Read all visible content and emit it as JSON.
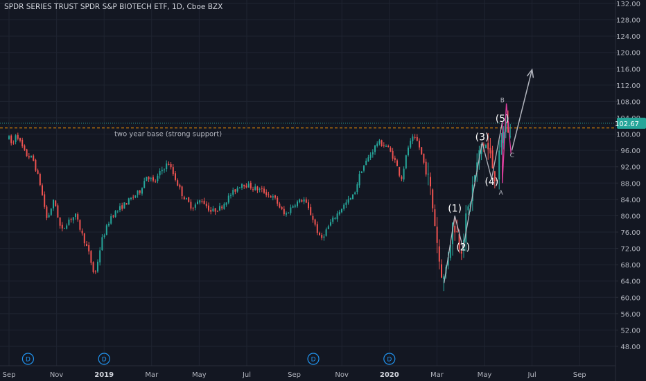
{
  "header": {
    "title": "SPDR SERIES TRUST SPDR S&P BIOTECH ETF, 1D, Cboe BZX"
  },
  "colors": {
    "background": "#131722",
    "grid": "#1f2431",
    "up": "#26a69a",
    "down": "#ef5350",
    "wave_line": "#b2b5be",
    "orange_line": "#ff9800",
    "price_line": "#26a69a",
    "price_badge": "#26a69a",
    "pink": "#e040a0",
    "axis_text": "#b2b5be"
  },
  "chart_data": {
    "type": "candlestick",
    "y_axis": {
      "min": 44,
      "max": 132,
      "ticks": [
        132,
        128,
        124,
        120,
        116,
        112,
        108,
        104,
        100,
        96,
        92,
        88,
        84,
        80,
        76,
        72,
        68,
        64,
        60,
        56,
        52,
        48
      ],
      "tick_labels": [
        "132.00",
        "128.00",
        "124.00",
        "120.00",
        "116.00",
        "112.00",
        "108.00",
        "104.00",
        "100.00",
        "96.00",
        "92.00",
        "88.00",
        "84.00",
        "80.00",
        "76.00",
        "72.00",
        "68.00",
        "64.00",
        "60.00",
        "56.00",
        "52.00",
        "48.00"
      ]
    },
    "x_axis": {
      "labels": [
        "Sep",
        "Nov",
        "2019",
        "Mar",
        "May",
        "Jul",
        "Sep",
        "Nov",
        "2020",
        "Mar",
        "May",
        "Jul",
        "Sep"
      ],
      "bold_labels": [
        "2019",
        "2020"
      ],
      "month_index": [
        0,
        2,
        4,
        6,
        8,
        10,
        12,
        14,
        16,
        18,
        20,
        22,
        24
      ]
    },
    "price_anchors": [
      [
        0,
        99
      ],
      [
        0.15,
        97
      ],
      [
        0.3,
        100.5
      ],
      [
        0.5,
        97.5
      ],
      [
        0.7,
        95
      ],
      [
        1.0,
        94
      ],
      [
        1.3,
        88
      ],
      [
        1.6,
        79
      ],
      [
        1.9,
        84
      ],
      [
        2.2,
        76
      ],
      [
        2.5,
        79
      ],
      [
        2.8,
        80
      ],
      [
        3.1,
        75
      ],
      [
        3.35,
        71
      ],
      [
        3.6,
        65
      ],
      [
        3.9,
        74
      ],
      [
        4.3,
        80
      ],
      [
        4.7,
        82
      ],
      [
        5.1,
        84
      ],
      [
        5.5,
        86
      ],
      [
        5.8,
        90
      ],
      [
        6.1,
        88
      ],
      [
        6.4,
        91
      ],
      [
        6.7,
        93
      ],
      [
        7.0,
        89
      ],
      [
        7.3,
        85
      ],
      [
        7.7,
        82
      ],
      [
        8.1,
        84
      ],
      [
        8.5,
        81
      ],
      [
        8.9,
        82
      ],
      [
        9.3,
        85
      ],
      [
        9.8,
        88
      ],
      [
        10.2,
        87
      ],
      [
        10.7,
        86
      ],
      [
        11.2,
        84
      ],
      [
        11.6,
        80
      ],
      [
        12.0,
        83
      ],
      [
        12.4,
        84
      ],
      [
        12.8,
        79
      ],
      [
        13.1,
        74
      ],
      [
        13.5,
        78
      ],
      [
        14.0,
        82
      ],
      [
        14.5,
        85
      ],
      [
        14.8,
        91
      ],
      [
        15.2,
        95
      ],
      [
        15.5,
        98
      ],
      [
        15.9,
        97
      ],
      [
        16.2,
        94
      ],
      [
        16.5,
        89
      ],
      [
        16.8,
        97
      ],
      [
        17.0,
        99
      ],
      [
        17.2,
        98
      ],
      [
        17.4,
        94
      ],
      [
        17.7,
        87
      ],
      [
        17.9,
        79
      ],
      [
        18.1,
        69
      ],
      [
        18.3,
        64
      ],
      [
        18.5,
        72
      ],
      [
        18.7,
        79
      ],
      [
        19.0,
        72
      ],
      [
        19.3,
        81
      ],
      [
        19.6,
        90
      ],
      [
        19.9,
        98
      ],
      [
        20.1,
        97
      ],
      [
        20.3,
        93
      ],
      [
        20.5,
        89
      ],
      [
        20.7,
        97
      ],
      [
        20.85,
        103
      ],
      [
        21.0,
        101
      ],
      [
        21.15,
        97
      ]
    ],
    "last_price": 102.67,
    "last_price_label": "102.67",
    "support_level": 101.5,
    "support_label": "two year base (strong support)",
    "elliott_waves": [
      {
        "label": "(1)",
        "month": 18.75,
        "price": 81
      },
      {
        "label": "(2)",
        "month": 19.1,
        "price": 71.5
      },
      {
        "label": "(3)",
        "month": 19.9,
        "price": 98.5
      },
      {
        "label": "(4)",
        "month": 20.3,
        "price": 87.5
      },
      {
        "label": "(5)",
        "month": 20.75,
        "price": 103
      }
    ],
    "abc_labels": [
      {
        "label": "B",
        "month": 20.9,
        "price": 107.5
      },
      {
        "label": "A",
        "month": 20.75,
        "price": 87.5
      },
      {
        "label": "C",
        "month": 21.1,
        "price": 95
      }
    ],
    "wave_path": [
      [
        18.3,
        63.5
      ],
      [
        18.75,
        80
      ],
      [
        19.1,
        72
      ],
      [
        19.9,
        98
      ],
      [
        20.3,
        89
      ],
      [
        20.75,
        103
      ]
    ],
    "projection": [
      [
        21.15,
        96
      ],
      [
        22.0,
        115.8
      ]
    ],
    "dividend_markers": [
      {
        "label": "D",
        "month": 0.8
      },
      {
        "label": "D",
        "month": 4.0
      },
      {
        "label": "D",
        "month": 12.8
      },
      {
        "label": "D",
        "month": 16.0
      }
    ]
  }
}
